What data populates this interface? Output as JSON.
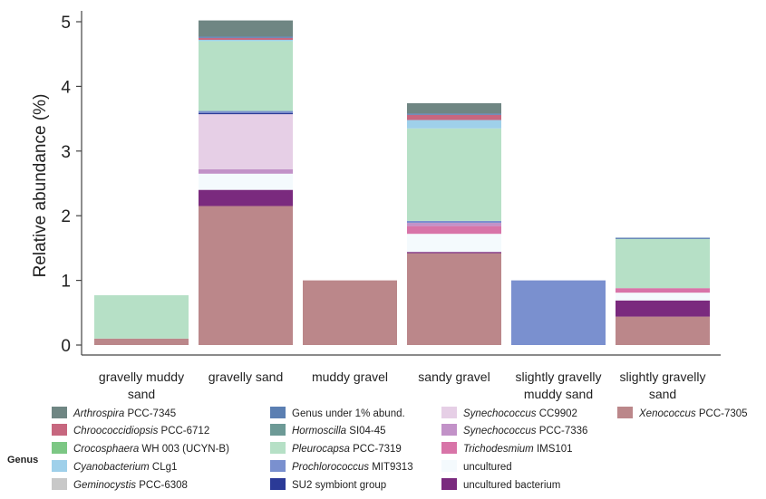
{
  "chart_data": {
    "type": "bar",
    "stacked": true,
    "ylabel": "Relative abundance (%)",
    "xlabel": "",
    "ylim": [
      0,
      5.2
    ],
    "yticks": [
      0,
      1,
      2,
      3,
      4,
      5
    ],
    "grid": false,
    "legend_title": "Genus",
    "legend_position": "bottom",
    "categories": [
      [
        "gravelly muddy",
        "sand"
      ],
      [
        "gravelly sand"
      ],
      [
        "muddy gravel"
      ],
      [
        "sandy gravel"
      ],
      [
        "slightly gravelly",
        "muddy sand"
      ],
      [
        "slightly gravelly",
        "sand"
      ]
    ],
    "series": [
      {
        "name": [
          "Xenococcus",
          "PCC-7305"
        ],
        "color": "#bb878a",
        "values": [
          0.1,
          2.15,
          1.0,
          1.42,
          0,
          0.44
        ]
      },
      {
        "name": [
          "",
          "uncultured bacterium"
        ],
        "color": "#7a2a7e",
        "values": [
          0,
          0.25,
          0,
          0.02,
          0,
          0.25
        ]
      },
      {
        "name": [
          "",
          "uncultured"
        ],
        "color": "#f4fafd",
        "values": [
          0,
          0.25,
          0,
          0.28,
          0,
          0.12
        ]
      },
      {
        "name": [
          "Trichodesmium",
          "IMS101"
        ],
        "color": "#d874a8",
        "values": [
          0,
          0,
          0,
          0.12,
          0,
          0.07
        ]
      },
      {
        "name": [
          "Synechococcus",
          "PCC-7336"
        ],
        "color": "#c292c8",
        "values": [
          0,
          0.07,
          0,
          0.05,
          0,
          0
        ]
      },
      {
        "name": [
          "Synechococcus",
          "CC9902"
        ],
        "color": "#e6cfe6",
        "values": [
          0,
          0.85,
          0,
          0,
          0,
          0
        ]
      },
      {
        "name": [
          "",
          "SU2 symbiont group"
        ],
        "color": "#2b3a97",
        "values": [
          0,
          0.02,
          0,
          0,
          0,
          0
        ]
      },
      {
        "name": [
          "Prochlorococcus",
          "MIT9313"
        ],
        "color": "#7a90cf",
        "values": [
          0,
          0.03,
          0,
          0.03,
          1.0,
          0
        ]
      },
      {
        "name": [
          "Pleurocapsa",
          "PCC-7319"
        ],
        "color": "#b6e0c6",
        "values": [
          0.67,
          1.08,
          0,
          1.43,
          0,
          0.76
        ]
      },
      {
        "name": [
          "Geminocystis",
          "PCC-6308"
        ],
        "color": "#c8c8c8",
        "values": [
          0,
          0,
          0,
          0,
          0,
          0
        ]
      },
      {
        "name": [
          "Cyanobacterium",
          "CLg1"
        ],
        "color": "#9fd0ea",
        "values": [
          0,
          0.02,
          0,
          0.13,
          0,
          0
        ]
      },
      {
        "name": [
          "Crocosphaera",
          "WH 003 (UCYN-B)"
        ],
        "color": "#7cc784",
        "values": [
          0,
          0,
          0,
          0,
          0,
          0
        ]
      },
      {
        "name": [
          "Hormoscilla",
          "SI04-45"
        ],
        "color": "#6d9a96",
        "values": [
          0,
          0,
          0,
          0,
          0,
          0
        ]
      },
      {
        "name": [
          "Chroococcidiopsis",
          "PCC-6712"
        ],
        "color": "#c7677f",
        "values": [
          0,
          0.03,
          0,
          0.08,
          0,
          0
        ]
      },
      {
        "name": [
          "",
          "Genus under 1% abund."
        ],
        "color": "#5b7fb2",
        "values": [
          0,
          0.02,
          0,
          0.02,
          0,
          0.02
        ]
      },
      {
        "name": [
          "Arthrospira",
          "PCC-7345"
        ],
        "color": "#6f8683",
        "values": [
          0,
          0.25,
          0,
          0.16,
          0,
          0
        ]
      }
    ],
    "legend_order": [
      [
        "Arthrospira",
        "PCC-7345"
      ],
      [
        "Chroococcidiopsis",
        "PCC-6712"
      ],
      [
        "Crocosphaera",
        "WH 003 (UCYN-B)"
      ],
      [
        "Cyanobacterium",
        "CLg1"
      ],
      [
        "Geminocystis",
        "PCC-6308"
      ],
      [
        "",
        "Genus under 1% abund."
      ],
      [
        "Hormoscilla",
        "SI04-45"
      ],
      [
        "Pleurocapsa",
        "PCC-7319"
      ],
      [
        "Prochlorococcus",
        "MIT9313"
      ],
      [
        "",
        "SU2 symbiont group"
      ],
      [
        "Synechococcus",
        "CC9902"
      ],
      [
        "Synechococcus",
        "PCC-7336"
      ],
      [
        "Trichodesmium",
        "IMS101"
      ],
      [
        "",
        "uncultured"
      ],
      [
        "",
        "uncultured bacterium"
      ],
      [
        "Xenococcus",
        "PCC-7305"
      ]
    ]
  }
}
